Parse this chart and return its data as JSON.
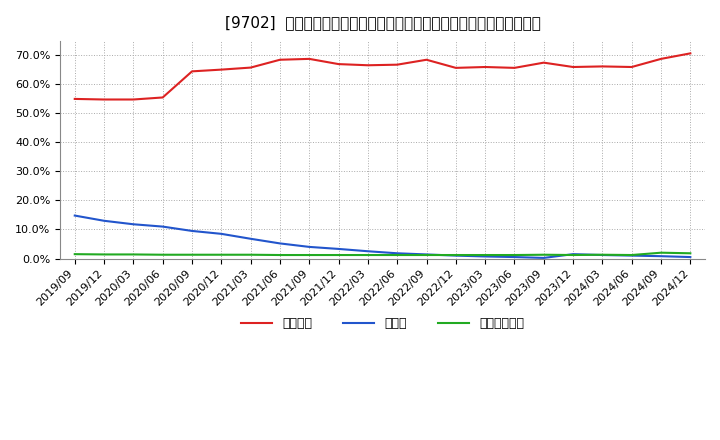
{
  "title": "[9702]  自己資本、のれん、繰延税金資産の総資産に対する比率の推移",
  "ylim": [
    0.0,
    0.75
  ],
  "yticks": [
    0.0,
    0.1,
    0.2,
    0.3,
    0.4,
    0.5,
    0.6,
    0.7
  ],
  "background_color": "#ffffff",
  "plot_bg_color": "#ffffff",
  "grid_color": "#aaaaaa",
  "x_labels": [
    "2019/09",
    "2019/12",
    "2020/03",
    "2020/06",
    "2020/09",
    "2020/12",
    "2021/03",
    "2021/06",
    "2021/09",
    "2021/12",
    "2022/03",
    "2022/06",
    "2022/09",
    "2022/12",
    "2023/03",
    "2023/06",
    "2023/09",
    "2023/12",
    "2024/03",
    "2024/06",
    "2024/09",
    "2024/12"
  ],
  "jiko_shihon": [
    0.55,
    0.548,
    0.548,
    0.555,
    0.645,
    0.651,
    0.658,
    0.685,
    0.688,
    0.67,
    0.666,
    0.668,
    0.685,
    0.657,
    0.66,
    0.657,
    0.675,
    0.66,
    0.662,
    0.66,
    0.688,
    0.707
  ],
  "noren": [
    0.148,
    0.13,
    0.118,
    0.11,
    0.095,
    0.085,
    0.068,
    0.052,
    0.04,
    0.033,
    0.025,
    0.018,
    0.014,
    0.01,
    0.007,
    0.005,
    0.002,
    0.015,
    0.012,
    0.01,
    0.008,
    0.005
  ],
  "kurinobe": [
    0.015,
    0.014,
    0.014,
    0.013,
    0.013,
    0.013,
    0.013,
    0.012,
    0.012,
    0.012,
    0.012,
    0.012,
    0.012,
    0.012,
    0.012,
    0.012,
    0.013,
    0.012,
    0.013,
    0.012,
    0.02,
    0.018
  ],
  "jiko_color": "#dd2222",
  "noren_color": "#2255cc",
  "kurinobe_color": "#22aa22",
  "legend_labels": [
    "自己資本",
    "のれん",
    "繰延税金資産"
  ],
  "title_fontsize": 11,
  "tick_fontsize": 8,
  "legend_fontsize": 9
}
